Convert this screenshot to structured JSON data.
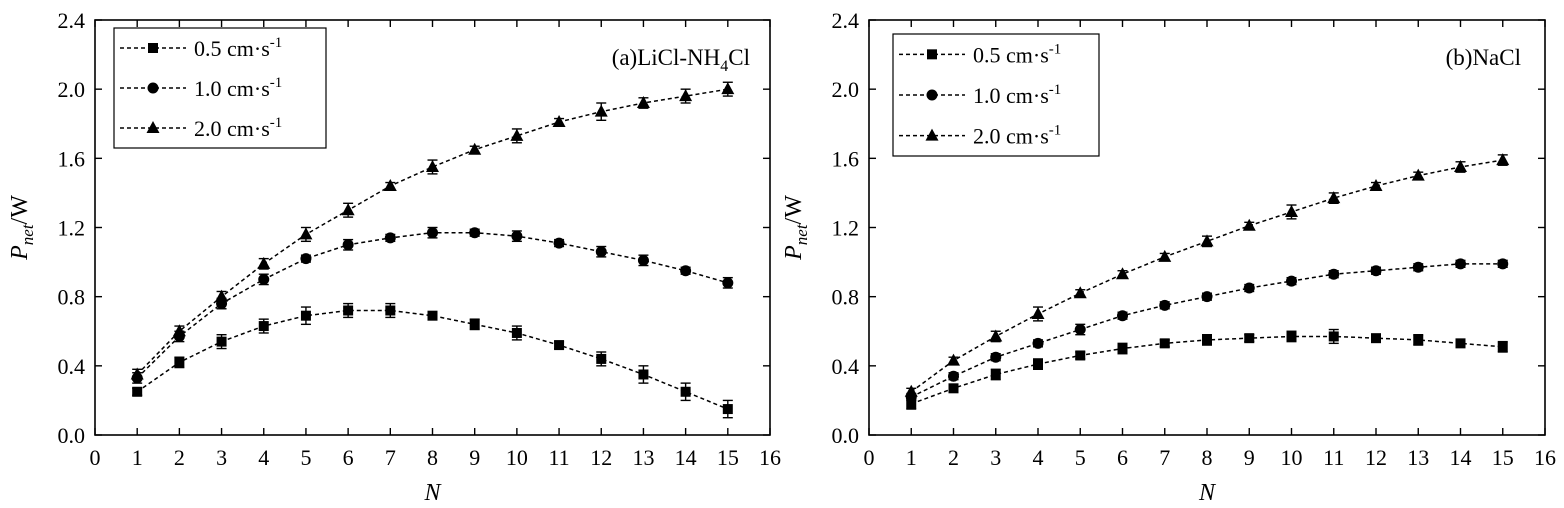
{
  "chart_data": [
    {
      "type": "line",
      "panel_label": "(a)LiCl-NH",
      "panel_label_sub": "4",
      "panel_label_tail": "Cl",
      "xlabel": "N",
      "ylabel_main": "P",
      "ylabel_sub": "net",
      "ylabel_unit": "/W",
      "xlim": [
        0,
        16
      ],
      "ylim": [
        0,
        2.4
      ],
      "xticks": [
        "0",
        "1",
        "2",
        "3",
        "4",
        "5",
        "6",
        "7",
        "8",
        "9",
        "10",
        "11",
        "12",
        "13",
        "14",
        "15",
        "16"
      ],
      "yticks": [
        "0.0",
        "0.4",
        "0.8",
        "1.2",
        "1.6",
        "2.0",
        "2.4"
      ],
      "legend_position": "top-left",
      "x": [
        1,
        2,
        3,
        4,
        5,
        6,
        7,
        8,
        9,
        10,
        11,
        12,
        13,
        14,
        15
      ],
      "series": [
        {
          "name": "0.5 cm·s",
          "name_sup": "-1",
          "marker": "square",
          "values": [
            0.25,
            0.42,
            0.54,
            0.63,
            0.69,
            0.72,
            0.72,
            0.69,
            0.64,
            0.59,
            0.52,
            0.44,
            0.35,
            0.25,
            0.15
          ],
          "errors": [
            0.02,
            0.03,
            0.04,
            0.04,
            0.05,
            0.04,
            0.04,
            0.02,
            0.03,
            0.04,
            0.02,
            0.04,
            0.05,
            0.05,
            0.05
          ]
        },
        {
          "name": "1.0 cm·s",
          "name_sup": "-1",
          "marker": "circle",
          "values": [
            0.33,
            0.57,
            0.76,
            0.9,
            1.02,
            1.1,
            1.14,
            1.17,
            1.17,
            1.15,
            1.11,
            1.06,
            1.01,
            0.95,
            0.88
          ],
          "errors": [
            0.03,
            0.03,
            0.03,
            0.03,
            0.02,
            0.03,
            0.02,
            0.03,
            0.02,
            0.03,
            0.02,
            0.03,
            0.03,
            0.02,
            0.03
          ]
        },
        {
          "name": "2.0 cm·s",
          "name_sup": "-1",
          "marker": "triangle",
          "values": [
            0.35,
            0.6,
            0.8,
            0.99,
            1.16,
            1.3,
            1.44,
            1.55,
            1.65,
            1.73,
            1.81,
            1.87,
            1.92,
            1.96,
            2.0
          ],
          "errors": [
            0.03,
            0.03,
            0.03,
            0.03,
            0.04,
            0.04,
            0.02,
            0.04,
            0.02,
            0.04,
            0.02,
            0.05,
            0.03,
            0.04,
            0.04
          ]
        }
      ]
    },
    {
      "type": "line",
      "panel_label": "(b)NaCl",
      "panel_label_sub": "",
      "panel_label_tail": "",
      "xlabel": "N",
      "ylabel_main": "P",
      "ylabel_sub": "net",
      "ylabel_unit": "/W",
      "xlim": [
        0,
        16
      ],
      "ylim": [
        0,
        2.4
      ],
      "xticks": [
        "0",
        "1",
        "2",
        "3",
        "4",
        "5",
        "6",
        "7",
        "8",
        "9",
        "10",
        "11",
        "12",
        "13",
        "14",
        "15",
        "16"
      ],
      "yticks": [
        "0.0",
        "0.4",
        "0.8",
        "1.2",
        "1.6",
        "2.0",
        "2.4"
      ],
      "legend_position": "top-left",
      "x": [
        1,
        2,
        3,
        4,
        5,
        6,
        7,
        8,
        9,
        10,
        11,
        12,
        13,
        14,
        15
      ],
      "series": [
        {
          "name": "0.5 cm·s",
          "name_sup": "-1",
          "marker": "square",
          "values": [
            0.18,
            0.27,
            0.35,
            0.41,
            0.46,
            0.5,
            0.53,
            0.55,
            0.56,
            0.57,
            0.57,
            0.56,
            0.55,
            0.53,
            0.51
          ],
          "errors": [
            0.03,
            0.02,
            0.03,
            0.03,
            0.02,
            0.03,
            0.02,
            0.03,
            0.02,
            0.03,
            0.04,
            0.02,
            0.03,
            0.02,
            0.03
          ]
        },
        {
          "name": "1.0 cm·s",
          "name_sup": "-1",
          "marker": "circle",
          "values": [
            0.22,
            0.34,
            0.45,
            0.53,
            0.61,
            0.69,
            0.75,
            0.8,
            0.85,
            0.89,
            0.93,
            0.95,
            0.97,
            0.99,
            0.99
          ],
          "errors": [
            0.02,
            0.02,
            0.02,
            0.02,
            0.03,
            0.02,
            0.02,
            0.02,
            0.02,
            0.02,
            0.02,
            0.02,
            0.02,
            0.02,
            0.02
          ]
        },
        {
          "name": "2.0 cm·s",
          "name_sup": "-1",
          "marker": "triangle",
          "values": [
            0.25,
            0.43,
            0.57,
            0.7,
            0.82,
            0.93,
            1.03,
            1.12,
            1.21,
            1.29,
            1.37,
            1.44,
            1.5,
            1.55,
            1.59
          ],
          "errors": [
            0.02,
            0.02,
            0.03,
            0.04,
            0.02,
            0.02,
            0.02,
            0.03,
            0.02,
            0.04,
            0.03,
            0.02,
            0.02,
            0.03,
            0.03
          ]
        }
      ]
    }
  ]
}
